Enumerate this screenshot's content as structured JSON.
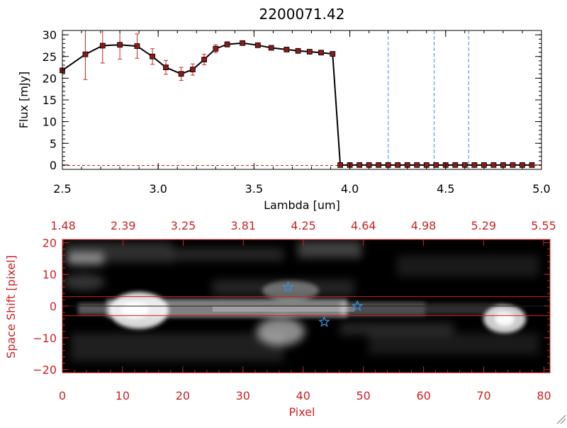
{
  "chart_data": [
    {
      "type": "line",
      "title": "2200071.42",
      "xlabel": "Lambda [um]",
      "ylabel": "Flux [mJy]",
      "xlim": [
        2.5,
        5.0
      ],
      "ylim": [
        -1,
        31
      ],
      "x_ticks": [
        "2.5",
        "3.0",
        "3.5",
        "4.0",
        "4.5",
        "5.0"
      ],
      "y_ticks": [
        "0",
        "5",
        "10",
        "15",
        "20",
        "25",
        "30"
      ],
      "series": [
        {
          "x": [
            2.5,
            2.62,
            2.71,
            2.8,
            2.89,
            2.97,
            3.04,
            3.12,
            3.18,
            3.24,
            3.3,
            3.36,
            3.44,
            3.52,
            3.59,
            3.67,
            3.73,
            3.79,
            3.85,
            3.91,
            3.95,
            4.0,
            4.05,
            4.1,
            4.15,
            4.2,
            4.25,
            4.3,
            4.35,
            4.4,
            4.45,
            4.5,
            4.55,
            4.6,
            4.65,
            4.7,
            4.75,
            4.8,
            4.85,
            4.9,
            4.95
          ],
          "y": [
            21.8,
            25.5,
            27.5,
            27.7,
            27.4,
            25.0,
            22.5,
            21.0,
            22.0,
            24.3,
            26.8,
            27.8,
            28.1,
            27.6,
            27.0,
            26.6,
            26.3,
            26.1,
            25.9,
            25.6,
            0,
            0,
            0,
            0,
            0,
            0,
            0,
            0,
            0,
            0,
            0,
            0,
            0,
            0,
            0,
            0,
            0,
            0,
            0,
            0,
            0
          ],
          "err": [
            3.5,
            5.8,
            4.0,
            3.3,
            2.8,
            1.8,
            1.6,
            1.5,
            1.3,
            1.2,
            0.9,
            0.6,
            0.5,
            0.4,
            0.3,
            0.3,
            0.3,
            0.2,
            0.2,
            0.2,
            0,
            0,
            0,
            0,
            0,
            0,
            0,
            0,
            0,
            0,
            0,
            0,
            0,
            0,
            0,
            0,
            0,
            0,
            0,
            0,
            0
          ]
        }
      ],
      "vlines": [
        4.2,
        4.44,
        4.62
      ],
      "colors": {
        "line": "#000000",
        "markers": "#8b1a1a",
        "errorbars": "#cc2222",
        "vlines": "#3a8fd6",
        "zero_line": "#cc2222"
      }
    },
    {
      "type": "heatmap",
      "xlabel": "Pixel",
      "ylabel": "Space Shift [pixel]",
      "xlim": [
        0,
        81
      ],
      "ylim": [
        -21,
        21
      ],
      "x_ticks": [
        "0",
        "10",
        "20",
        "30",
        "40",
        "50",
        "60",
        "70",
        "80"
      ],
      "y_ticks": [
        "−20",
        "−10",
        "0",
        "10",
        "20"
      ],
      "top_axis_ticks": [
        "1.48",
        "2.39",
        "3.25",
        "3.81",
        "4.25",
        "4.64",
        "4.98",
        "5.29",
        "5.55"
      ],
      "extraction_lines": [
        3,
        -3
      ],
      "stars": [
        {
          "x": 37.5,
          "y": 6
        },
        {
          "x": 43.5,
          "y": -5
        },
        {
          "x": 49,
          "y": 0
        }
      ],
      "colors": {
        "axes": "#cc2222",
        "stars": "#3a8fd6",
        "lines": "#cc2222"
      }
    }
  ]
}
